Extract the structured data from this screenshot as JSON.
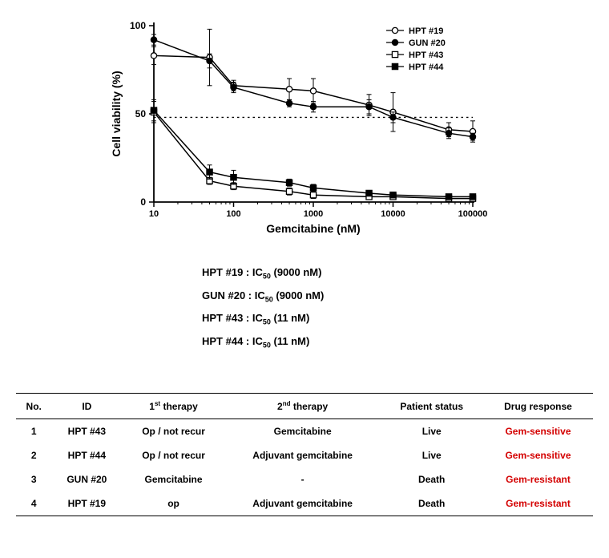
{
  "chart": {
    "type": "line-scatter",
    "xlabel": "Gemcitabine (nM)",
    "ylabel": "Cell viability (%)",
    "label_fontsize": 14,
    "label_fontweight": "bold",
    "xscale": "log",
    "xlim": [
      10,
      100000
    ],
    "ylim": [
      0,
      100
    ],
    "xticks": [
      10,
      100,
      1000,
      10000,
      100000
    ],
    "xtick_labels": [
      "10",
      "100",
      "1000",
      "10000",
      "100000"
    ],
    "yticks": [
      0,
      50,
      100
    ],
    "ytick_labels": [
      "0",
      "50",
      "100"
    ],
    "background_color": "#ffffff",
    "axis_color": "#000000",
    "font_family": "Arial",
    "reference_line": {
      "y": 48,
      "style": "dotted",
      "color": "#000000"
    },
    "legend": {
      "position": "top-right",
      "items": [
        {
          "label": "HPT #19",
          "marker": "open-circle"
        },
        {
          "label": "GUN #20",
          "marker": "filled-circle"
        },
        {
          "label": "HPT #43",
          "marker": "open-square"
        },
        {
          "label": "HPT #44",
          "marker": "filled-square"
        }
      ]
    },
    "series": [
      {
        "name": "HPT #19",
        "marker": "open-circle",
        "marker_fill": "#ffffff",
        "marker_stroke": "#000000",
        "line_color": "#000000",
        "line_width": 1.5,
        "x": [
          10,
          50,
          100,
          500,
          1000,
          5000,
          10000,
          50000,
          100000
        ],
        "y": [
          83,
          82,
          66,
          64,
          63,
          55,
          51,
          41,
          40
        ],
        "err": [
          5,
          16,
          3,
          6,
          7,
          6,
          11,
          4,
          6
        ]
      },
      {
        "name": "GUN #20",
        "marker": "filled-circle",
        "marker_fill": "#000000",
        "marker_stroke": "#000000",
        "line_color": "#000000",
        "line_width": 1.5,
        "x": [
          10,
          50,
          100,
          500,
          1000,
          5000,
          10000,
          50000,
          100000
        ],
        "y": [
          92,
          80,
          65,
          56,
          54,
          54,
          48,
          39,
          37
        ],
        "err": [
          3,
          4,
          3,
          2,
          3,
          4,
          3,
          3,
          2
        ]
      },
      {
        "name": "HPT #43",
        "marker": "open-square",
        "marker_fill": "#ffffff",
        "marker_stroke": "#000000",
        "line_color": "#000000",
        "line_width": 1.5,
        "x": [
          10,
          50,
          100,
          500,
          1000,
          5000,
          10000,
          50000,
          100000
        ],
        "y": [
          51,
          12,
          9,
          6,
          4,
          3,
          3,
          2,
          2
        ],
        "err": [
          6,
          2,
          2,
          2,
          2,
          1,
          1,
          1,
          1
        ]
      },
      {
        "name": "HPT #44",
        "marker": "filled-square",
        "marker_fill": "#000000",
        "marker_stroke": "#000000",
        "line_color": "#000000",
        "line_width": 1.5,
        "x": [
          10,
          50,
          100,
          500,
          1000,
          5000,
          10000,
          50000,
          100000
        ],
        "y": [
          52,
          17,
          14,
          11,
          8,
          5,
          4,
          3,
          3
        ],
        "err": [
          6,
          4,
          4,
          2,
          2,
          1,
          1,
          1,
          1
        ]
      }
    ]
  },
  "ic50": [
    {
      "label": "HPT #19",
      "value": "9000 nM"
    },
    {
      "label": "GUN #20",
      "value": "9000 nM"
    },
    {
      "label": "HPT #43",
      "value": "11 nM"
    },
    {
      "label": "HPT #44",
      "value": "11 nM"
    }
  ],
  "table": {
    "columns": [
      "No.",
      "ID",
      "1st therapy",
      "2nd therapy",
      "Patient status",
      "Drug response"
    ],
    "col_sup": [
      "",
      "",
      "st",
      "nd",
      "",
      ""
    ],
    "col_base": [
      "No.",
      "ID",
      "1",
      "2",
      "Patient status",
      "Drug response"
    ],
    "col_tail": [
      "",
      "",
      " therapy",
      " therapy",
      "",
      ""
    ],
    "rows": [
      {
        "no": "1",
        "id": "HPT #43",
        "t1": "Op / not recur",
        "t2": "Gemcitabine",
        "status": "Live",
        "resp": "Gem-sensitive",
        "resp_color": "#d40000"
      },
      {
        "no": "2",
        "id": "HPT #44",
        "t1": "Op / not recur",
        "t2": "Adjuvant gemcitabine",
        "status": "Live",
        "resp": "Gem-sensitive",
        "resp_color": "#d40000"
      },
      {
        "no": "3",
        "id": "GUN #20",
        "t1": "Gemcitabine",
        "t2": "-",
        "status": "Death",
        "resp": "Gem-resistant",
        "resp_color": "#d40000"
      },
      {
        "no": "4",
        "id": "HPT #19",
        "t1": "op",
        "t2": "Adjuvant gemcitabine",
        "status": "Death",
        "resp": "Gem-resistant",
        "resp_color": "#d40000"
      }
    ]
  }
}
